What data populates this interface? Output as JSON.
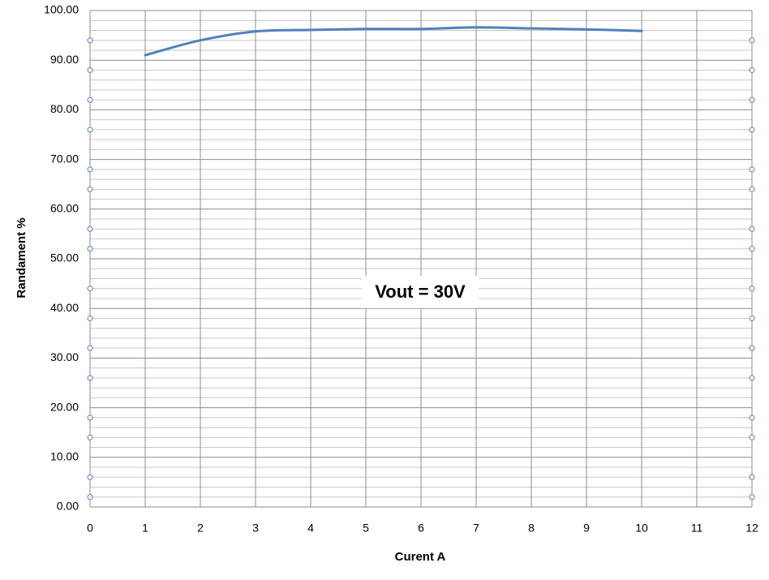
{
  "chart_data": {
    "type": "line",
    "x_label": "Curent A",
    "y_label": "Randament %",
    "annotation": "Vout = 30V",
    "xlim": [
      0,
      12
    ],
    "xticks": [
      0,
      1,
      2,
      3,
      4,
      5,
      6,
      7,
      8,
      9,
      10,
      11,
      12
    ],
    "ylim": [
      0,
      100
    ],
    "yticks": [
      {
        "value": 0,
        "label": "0.00"
      },
      {
        "value": 10,
        "label": "10.00"
      },
      {
        "value": 20,
        "label": "20.00"
      },
      {
        "value": 30,
        "label": "30.00"
      },
      {
        "value": 40,
        "label": "40.00"
      },
      {
        "value": 50,
        "label": "50.00"
      },
      {
        "value": 60,
        "label": "60.00"
      },
      {
        "value": 70,
        "label": "70.00"
      },
      {
        "value": 80,
        "label": "80.00"
      },
      {
        "value": 90,
        "label": "90.00"
      },
      {
        "value": 100,
        "label": "100.00"
      }
    ],
    "yminorticks": [
      2,
      4,
      6,
      8,
      12,
      14,
      16,
      18,
      22,
      24,
      26,
      28,
      32,
      34,
      36,
      38,
      42,
      44,
      46,
      48,
      52,
      54,
      56,
      58,
      62,
      64,
      66,
      68,
      72,
      74,
      76,
      78,
      82,
      84,
      86,
      88,
      92,
      94,
      96,
      98
    ],
    "grid": true,
    "smooth": true,
    "series": [
      {
        "color": "#4f81bd",
        "x": [
          1,
          2,
          3,
          4,
          5,
          6,
          7,
          8,
          9,
          10
        ],
        "values": [
          91.0,
          94.0,
          95.8,
          96.1,
          96.3,
          96.3,
          96.6,
          96.4,
          96.2,
          95.9
        ]
      },
      {
        "color": "#4f81bd",
        "markers_only": true,
        "x": [
          0,
          0,
          0,
          0,
          0,
          0,
          0,
          0,
          0,
          0,
          0,
          0,
          0,
          0,
          0,
          0,
          12,
          12,
          12,
          12,
          12,
          12,
          12,
          12,
          12,
          12,
          12,
          12,
          12,
          12,
          12,
          12
        ],
        "values": [
          94,
          88,
          82,
          76,
          68,
          64,
          56,
          52,
          44,
          38,
          32,
          26,
          18,
          14,
          6,
          2,
          94,
          88,
          82,
          76,
          68,
          64,
          56,
          52,
          44,
          38,
          32,
          26,
          18,
          14,
          6,
          2
        ]
      }
    ]
  }
}
